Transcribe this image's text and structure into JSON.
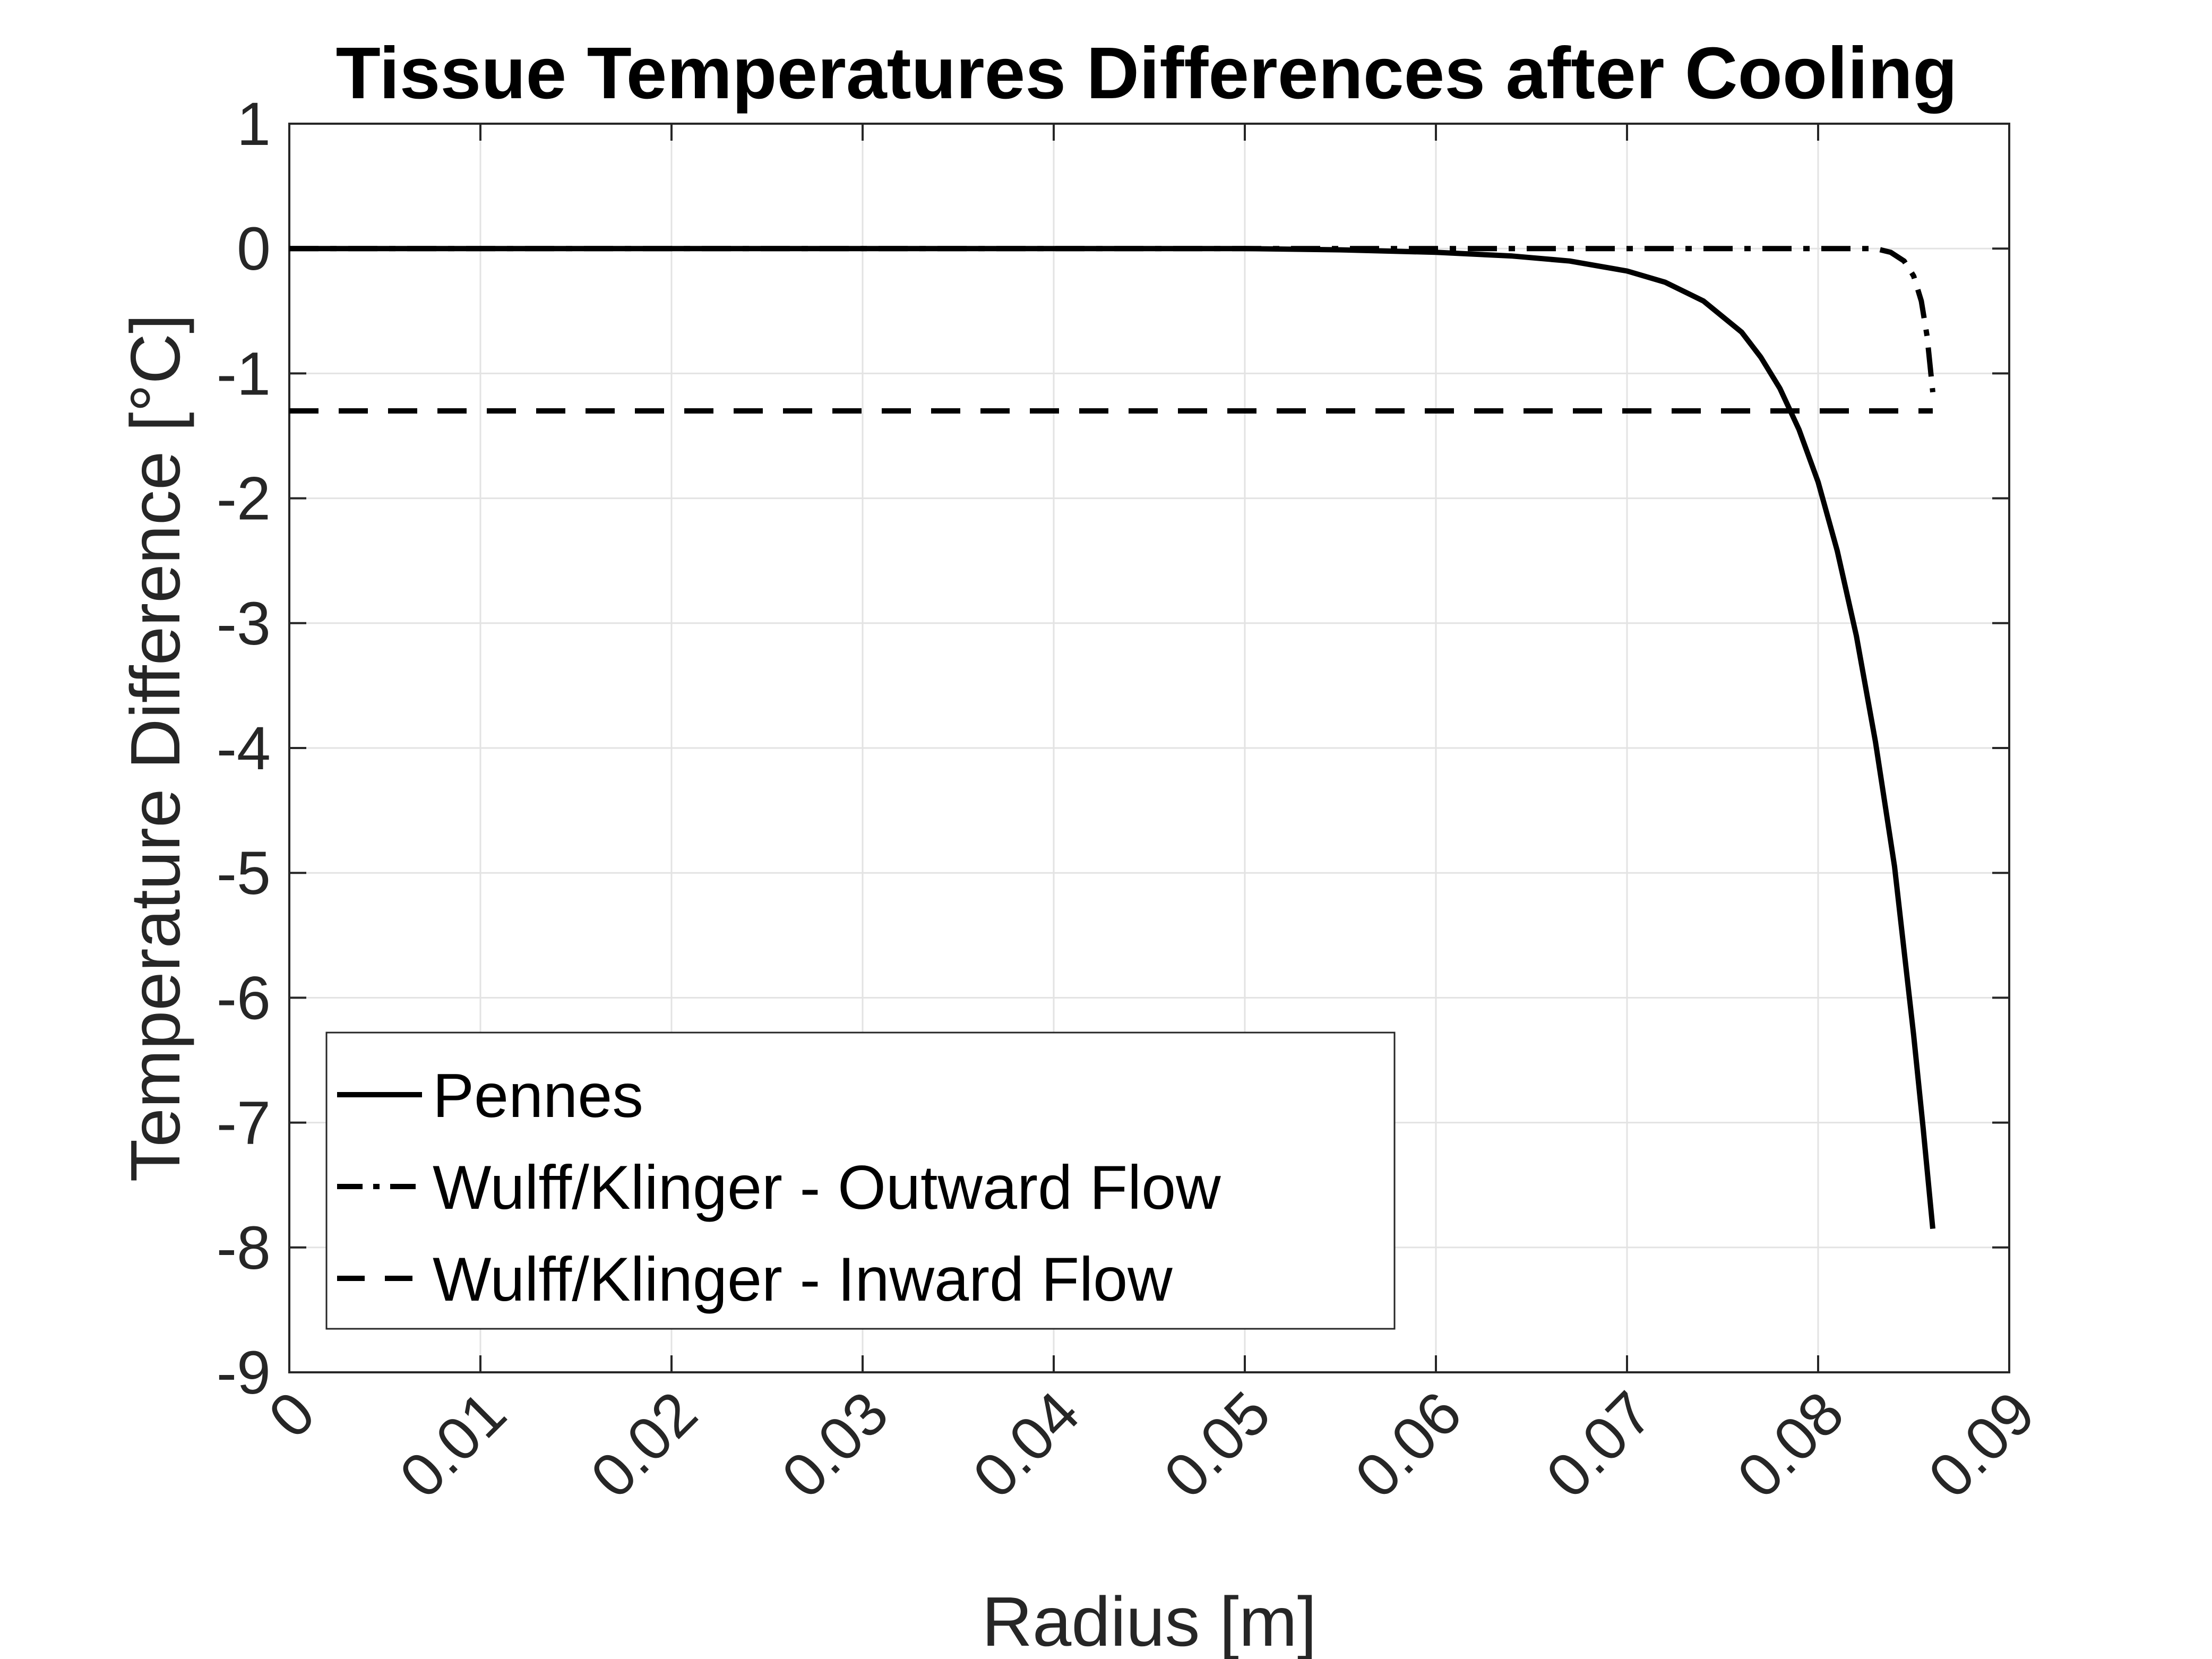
{
  "chart_data": {
    "type": "line",
    "title": "Tissue Temperatures Differences after Cooling",
    "xlabel": "Radius [m]",
    "ylabel": "Temperature Difference [°C]",
    "xlim": [
      0,
      0.09
    ],
    "ylim": [
      -9,
      1
    ],
    "xticks": [
      0,
      0.01,
      0.02,
      0.03,
      0.04,
      0.05,
      0.06,
      0.07,
      0.08,
      0.09
    ],
    "xtick_labels": [
      "0",
      "0.01",
      "0.02",
      "0.03",
      "0.04",
      "0.05",
      "0.06",
      "0.07",
      "0.08",
      "0.09"
    ],
    "yticks": [
      1,
      0,
      -1,
      -2,
      -3,
      -4,
      -5,
      -6,
      -7,
      -8,
      -9
    ],
    "ytick_labels": [
      "1",
      "0",
      "-1",
      "-2",
      "-3",
      "-4",
      "-5",
      "-6",
      "-7",
      "-8",
      "-9"
    ],
    "grid": true,
    "legend_position": "bottom-left",
    "line_color": "#000000",
    "series": [
      {
        "name": "Pennes",
        "style": "solid",
        "x": [
          0,
          0.05,
          0.055,
          0.06,
          0.064,
          0.067,
          0.07,
          0.072,
          0.074,
          0.076,
          0.077,
          0.078,
          0.079,
          0.08,
          0.081,
          0.082,
          0.083,
          0.084,
          0.085,
          0.0855,
          0.086
        ],
        "y": [
          0,
          0,
          -0.01,
          -0.03,
          -0.06,
          -0.1,
          -0.18,
          -0.27,
          -0.42,
          -0.67,
          -0.87,
          -1.12,
          -1.45,
          -1.87,
          -2.42,
          -3.1,
          -3.95,
          -4.95,
          -6.3,
          -7.05,
          -7.85
        ]
      },
      {
        "name": "Wulff/Klinger - Outward Flow",
        "style": "dashdot",
        "x": [
          0,
          0.083,
          0.0838,
          0.0845,
          0.085,
          0.0854,
          0.0857,
          0.086
        ],
        "y": [
          0,
          0,
          -0.03,
          -0.1,
          -0.22,
          -0.42,
          -0.7,
          -1.15
        ]
      },
      {
        "name": "Wulff/Klinger - Inward Flow",
        "style": "dashed",
        "x": [
          0,
          0.086
        ],
        "y": [
          -1.3,
          -1.3
        ]
      }
    ]
  }
}
